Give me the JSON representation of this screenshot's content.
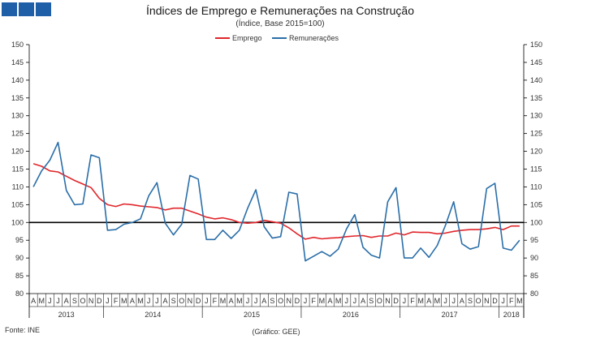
{
  "header": {
    "title": "Índices de Emprego e Remunerações na Construção",
    "subtitle": "(Índice, Base 2015=100)",
    "brand_color": "#1f5fa8"
  },
  "footer": {
    "source": "Fonte: INE",
    "credit": "(Gráfico: GEE)"
  },
  "chart_data": {
    "type": "line",
    "title": "Índices de Emprego e Remunerações na Construção",
    "subtitle": "(Índice, Base 2015=100)",
    "x": [
      "2013-04",
      "2013-05",
      "2013-06",
      "2013-07",
      "2013-08",
      "2013-09",
      "2013-10",
      "2013-11",
      "2013-12",
      "2014-01",
      "2014-02",
      "2014-03",
      "2014-04",
      "2014-05",
      "2014-06",
      "2014-07",
      "2014-08",
      "2014-09",
      "2014-10",
      "2014-11",
      "2014-12",
      "2015-01",
      "2015-02",
      "2015-03",
      "2015-04",
      "2015-05",
      "2015-06",
      "2015-07",
      "2015-08",
      "2015-09",
      "2015-10",
      "2015-11",
      "2015-12",
      "2016-01",
      "2016-02",
      "2016-03",
      "2016-04",
      "2016-05",
      "2016-06",
      "2016-07",
      "2016-08",
      "2016-09",
      "2016-10",
      "2016-11",
      "2016-12",
      "2017-01",
      "2017-02",
      "2017-03",
      "2017-04",
      "2017-05",
      "2017-06",
      "2017-07",
      "2017-08",
      "2017-09",
      "2017-10",
      "2017-11",
      "2017-12",
      "2018-01",
      "2018-02",
      "2018-03"
    ],
    "month_labels": [
      "A",
      "M",
      "J",
      "J",
      "A",
      "S",
      "O",
      "N",
      "D",
      "J",
      "F",
      "M",
      "A",
      "M",
      "J",
      "J",
      "A",
      "S",
      "O",
      "N",
      "D",
      "J",
      "F",
      "M",
      "A",
      "M",
      "J",
      "J",
      "A",
      "S",
      "O",
      "N",
      "D",
      "J",
      "F",
      "M",
      "A",
      "M",
      "J",
      "J",
      "A",
      "S",
      "O",
      "N",
      "D",
      "J",
      "F",
      "M",
      "A",
      "M",
      "J",
      "J",
      "A",
      "S",
      "O",
      "N",
      "D",
      "J",
      "F",
      "M"
    ],
    "year_labels": [
      {
        "label": "2013",
        "start": 0,
        "end": 8
      },
      {
        "label": "2014",
        "start": 9,
        "end": 20
      },
      {
        "label": "2015",
        "start": 21,
        "end": 32
      },
      {
        "label": "2016",
        "start": 33,
        "end": 44
      },
      {
        "label": "2017",
        "start": 45,
        "end": 56
      },
      {
        "label": "2018",
        "start": 57,
        "end": 59
      }
    ],
    "series": [
      {
        "name": "Emprego",
        "color": "#e0262b",
        "values": [
          116.5,
          115.8,
          114.5,
          114.2,
          113.0,
          111.8,
          110.8,
          109.8,
          106.8,
          105.0,
          104.5,
          105.2,
          105.0,
          104.6,
          104.4,
          104.2,
          103.5,
          104.0,
          104.0,
          103.2,
          102.4,
          101.5,
          101.0,
          101.3,
          100.8,
          100.0,
          99.8,
          100.0,
          100.6,
          100.2,
          99.8,
          98.5,
          96.8,
          95.3,
          95.8,
          95.4,
          95.6,
          95.7,
          96.0,
          96.2,
          96.3,
          95.8,
          96.2,
          96.2,
          97.0,
          96.5,
          97.3,
          97.2,
          97.2,
          96.8,
          97.0,
          97.5,
          97.8,
          98.0,
          98.0,
          98.2,
          98.6,
          98.0,
          99.0,
          99.0
        ]
      },
      {
        "name": "Remunerações",
        "color": "#2a6ea8",
        "values": [
          110.0,
          114.5,
          117.5,
          122.5,
          109.0,
          105.0,
          105.2,
          119.0,
          118.2,
          97.8,
          98.0,
          99.5,
          100.0,
          101.0,
          107.5,
          111.2,
          99.8,
          96.5,
          99.5,
          113.2,
          112.2,
          95.2,
          95.2,
          97.8,
          95.5,
          97.8,
          104.0,
          109.2,
          98.8,
          95.6,
          96.0,
          108.5,
          108.0,
          89.2,
          90.5,
          91.8,
          90.5,
          92.5,
          98.2,
          102.2,
          93.0,
          90.8,
          90.0,
          105.8,
          109.8,
          90.0,
          90.0,
          92.8,
          90.2,
          93.5,
          99.2,
          105.8,
          94.0,
          92.5,
          93.2,
          109.5,
          111.0,
          92.8,
          92.2,
          95.0
        ]
      }
    ],
    "reference_line": 100,
    "ylim": [
      80,
      150
    ],
    "yticks": [
      80,
      85,
      90,
      95,
      100,
      105,
      110,
      115,
      120,
      125,
      130,
      135,
      140,
      145,
      150
    ],
    "secondary_yaxis": true,
    "grid": false,
    "legend": "top-center"
  }
}
